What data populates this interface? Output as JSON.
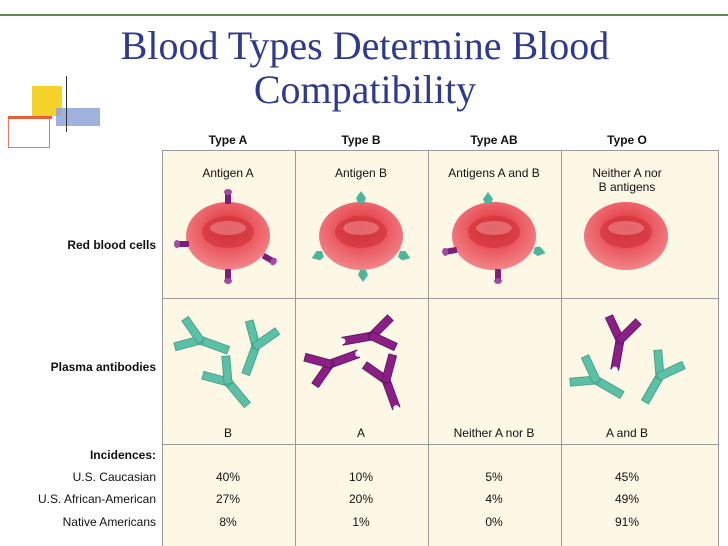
{
  "slide": {
    "title_line1": "Blood Types Determine Blood",
    "title_line2": "Compatibility"
  },
  "columns": [
    {
      "header": "Type A",
      "antigen": "Antigen A",
      "antibody": "B"
    },
    {
      "header": "Type B",
      "antigen": "Antigen B",
      "antibody": "A"
    },
    {
      "header": "Type AB",
      "antigen": "Antigens A and B",
      "antibody": "Neither A nor B"
    },
    {
      "header": "Type O",
      "antigen_line1": "Neither A nor",
      "antigen_line2": "B antigens",
      "antibody": "A and B"
    }
  ],
  "rows": {
    "red_blood_cells": "Red blood cells",
    "plasma_antibodies": "Plasma antibodies",
    "incidences": "Incidences:"
  },
  "incidences": [
    {
      "population": "U.S. Caucasian",
      "values": [
        "40%",
        "10%",
        "5%",
        "45%"
      ]
    },
    {
      "population": "U.S. African-American",
      "values": [
        "27%",
        "20%",
        "4%",
        "49%"
      ]
    },
    {
      "population": "Native Americans",
      "values": [
        "8%",
        "1%",
        "0%",
        "91%"
      ]
    }
  ],
  "colors": {
    "title": "#2e3a8c",
    "cell": "#e04848",
    "antigen_a": "#7a1f7a",
    "antigen_b": "#4fb59a",
    "antibody_b": "#4fb59a",
    "antibody_a": "#8a1f86"
  }
}
